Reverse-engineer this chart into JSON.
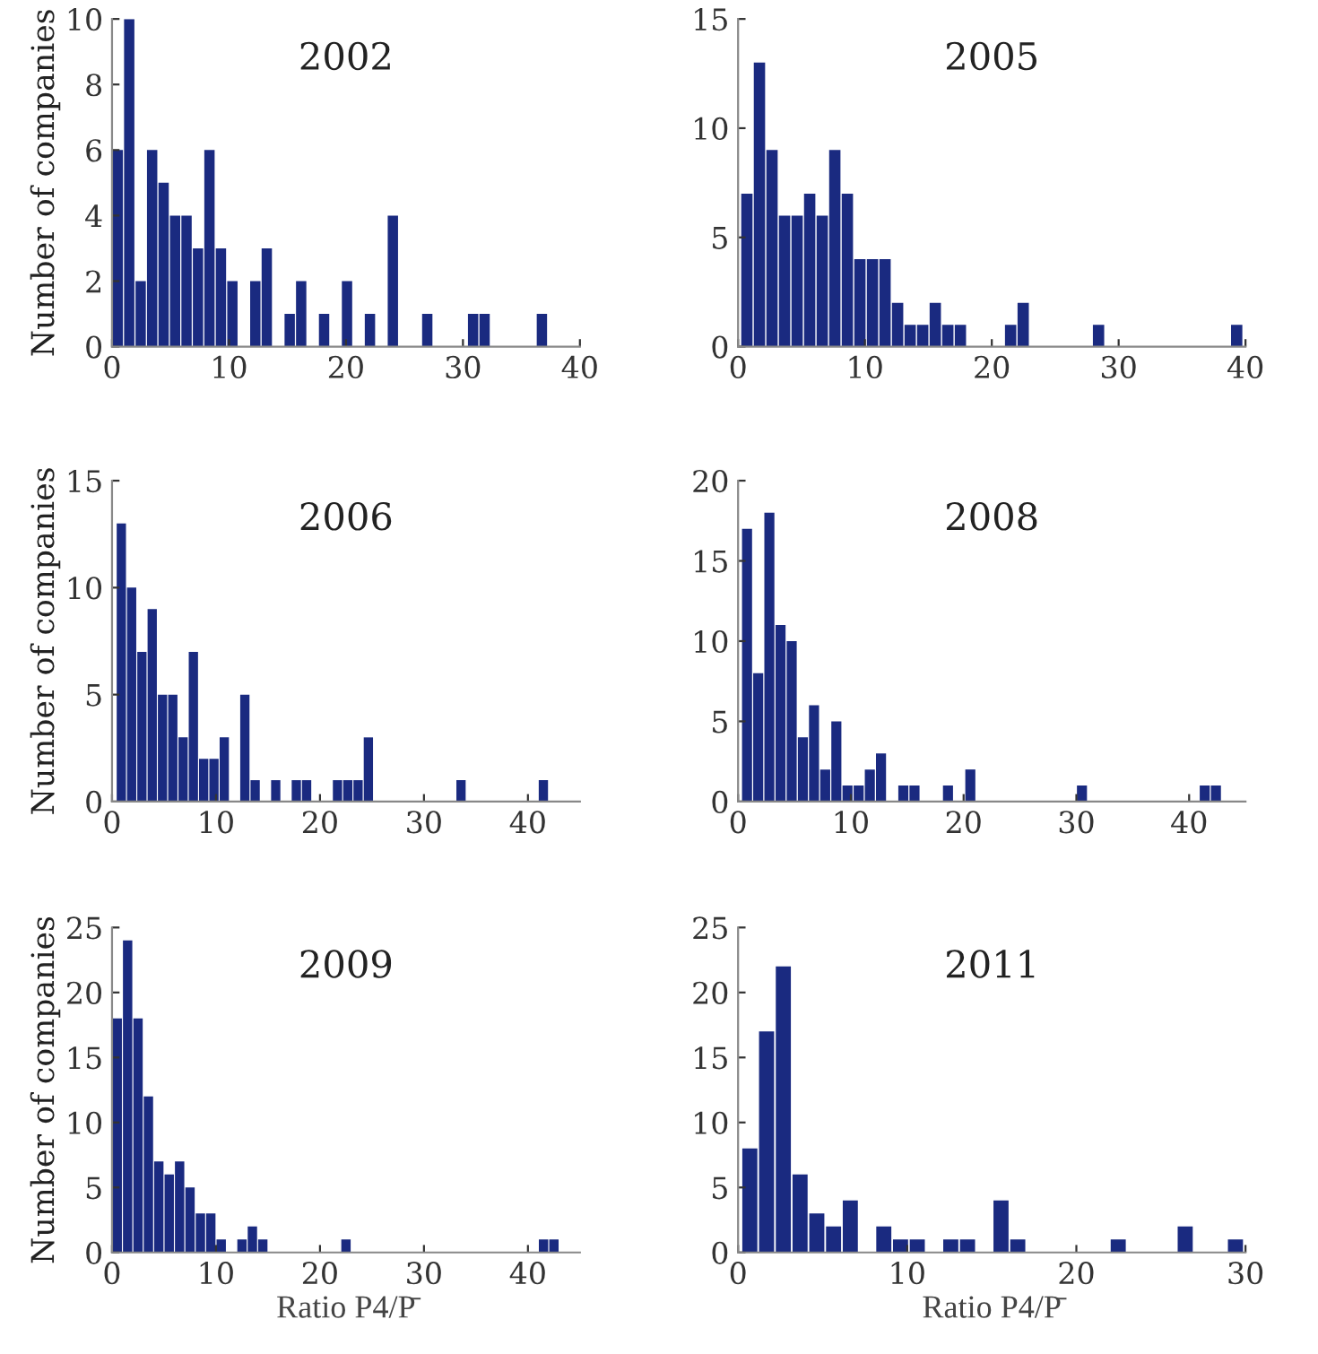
{
  "chart_data": [
    {
      "type": "histogram",
      "title": "2002",
      "ylabel": "Number of companies",
      "color": "#1a2a80",
      "xlim": [
        0,
        40
      ],
      "xticks": [
        0,
        10,
        20,
        30,
        40
      ],
      "ylim": [
        0,
        10
      ],
      "yticks": [
        0,
        2,
        4,
        6,
        8,
        10
      ],
      "grid": false,
      "bins": [
        0,
        0.98,
        1.96,
        2.94,
        3.92,
        4.9,
        5.88,
        6.86,
        7.84,
        8.82,
        9.8,
        10.78,
        11.76,
        12.74,
        13.72,
        14.7,
        15.68,
        16.66,
        17.64,
        18.62,
        19.6,
        20.58,
        21.56,
        22.54,
        23.52,
        24.5,
        25.48,
        26.46,
        27.44,
        28.42,
        29.4,
        30.38,
        31.36,
        32.34,
        33.32,
        34.3,
        35.28,
        36.26,
        37.24
      ],
      "values": [
        6,
        10,
        2,
        6,
        5,
        4,
        4,
        3,
        6,
        3,
        2,
        0,
        2,
        3,
        0,
        1,
        2,
        0,
        1,
        0,
        2,
        0,
        1,
        0,
        4,
        0,
        0,
        1,
        0,
        0,
        0,
        1,
        1,
        0,
        0,
        0,
        0,
        1
      ]
    },
    {
      "type": "histogram",
      "title": "2005",
      "color": "#1a2a80",
      "xlim": [
        0,
        40
      ],
      "xticks": [
        0,
        10,
        20,
        30,
        40
      ],
      "ylim": [
        0,
        15
      ],
      "yticks": [
        0,
        5,
        10,
        15
      ],
      "grid": false,
      "bins": [
        0.2,
        1.19,
        2.18,
        3.17,
        4.16,
        5.15,
        6.14,
        7.13,
        8.12,
        9.11,
        10.1,
        11.09,
        12.08,
        13.07,
        14.06,
        15.05,
        16.04,
        17.03,
        18.02,
        19.01,
        20,
        20.99,
        21.98,
        22.97,
        23.96,
        24.95,
        25.94,
        26.93,
        27.92,
        28.91,
        29.9,
        30.89,
        31.88,
        32.87,
        33.86,
        34.85,
        35.84,
        36.83,
        37.82,
        38.81,
        39.8
      ],
      "values": [
        7,
        13,
        9,
        6,
        6,
        7,
        6,
        9,
        7,
        4,
        4,
        4,
        2,
        1,
        1,
        2,
        1,
        1,
        0,
        0,
        0,
        1,
        2,
        0,
        0,
        0,
        0,
        0,
        1,
        0,
        0,
        0,
        0,
        0,
        0,
        0,
        0,
        0,
        0,
        1
      ]
    },
    {
      "type": "histogram",
      "title": "2006",
      "ylabel": "Number of companies",
      "color": "#1a2a80",
      "xlim": [
        0,
        45
      ],
      "xticks": [
        0,
        10,
        20,
        30,
        40
      ],
      "ylim": [
        0,
        15
      ],
      "yticks": [
        0,
        5,
        10,
        15
      ],
      "grid": false,
      "bins": [
        0.4,
        1.39,
        2.38,
        3.37,
        4.36,
        5.35,
        6.34,
        7.33,
        8.32,
        9.31,
        10.3,
        11.29,
        12.28,
        13.27,
        14.26,
        15.25,
        16.24,
        17.23,
        18.22,
        19.21,
        20.2,
        21.19,
        22.18,
        23.17,
        24.16,
        25.15,
        26.14,
        27.13,
        28.12,
        29.11,
        30.1,
        31.09,
        32.08,
        33.07,
        34.06,
        35.05,
        36.04,
        37.03,
        38.02,
        39.01,
        40,
        40.99,
        41.98
      ],
      "values": [
        13,
        10,
        7,
        9,
        5,
        5,
        3,
        7,
        2,
        2,
        3,
        0,
        5,
        1,
        0,
        1,
        0,
        1,
        1,
        0,
        0,
        1,
        1,
        1,
        3,
        0,
        0,
        0,
        0,
        0,
        0,
        0,
        0,
        1,
        0,
        0,
        0,
        0,
        0,
        0,
        0,
        1
      ]
    },
    {
      "type": "histogram",
      "title": "2008",
      "color": "#1a2a80",
      "xlim": [
        0,
        45
      ],
      "xticks": [
        0,
        10,
        20,
        30,
        40
      ],
      "ylim": [
        0,
        20
      ],
      "yticks": [
        0,
        5,
        10,
        15,
        20
      ],
      "grid": false,
      "bins": [
        0.3,
        1.29,
        2.28,
        3.27,
        4.26,
        5.25,
        6.24,
        7.23,
        8.22,
        9.21,
        10.2,
        11.19,
        12.18,
        13.17,
        14.16,
        15.15,
        16.14,
        17.13,
        18.12,
        19.11,
        20.1,
        21.09,
        22.08,
        23.07,
        24.06,
        25.05,
        26.04,
        27.03,
        28.02,
        29.01,
        30,
        30.99,
        31.98,
        32.97,
        33.96,
        34.95,
        35.94,
        36.93,
        37.92,
        38.91,
        39.9,
        40.89,
        41.88,
        42.87
      ],
      "values": [
        17,
        8,
        18,
        11,
        10,
        4,
        6,
        2,
        5,
        1,
        1,
        2,
        3,
        0,
        1,
        1,
        0,
        0,
        1,
        0,
        2,
        0,
        0,
        0,
        0,
        0,
        0,
        0,
        0,
        0,
        1,
        0,
        0,
        0,
        0,
        0,
        0,
        0,
        0,
        0,
        0,
        1,
        1
      ]
    },
    {
      "type": "histogram",
      "title": "2009",
      "ylabel": "Number of companies",
      "xlabel": "Ratio P4/P̄",
      "color": "#1a2a80",
      "xlim": [
        0,
        45
      ],
      "xticks": [
        0,
        10,
        20,
        30,
        40
      ],
      "ylim": [
        0,
        25
      ],
      "yticks": [
        0,
        5,
        10,
        15,
        20,
        25
      ],
      "grid": false,
      "bins": [
        0,
        1,
        2,
        3,
        4,
        5,
        6,
        7,
        8,
        9,
        10,
        11,
        12,
        13,
        14,
        15,
        16,
        17,
        18,
        19,
        20,
        21,
        22,
        23,
        24,
        25,
        26,
        27,
        28,
        29,
        30,
        31,
        32,
        33,
        34,
        35,
        36,
        37,
        38,
        39,
        40,
        41,
        42,
        43
      ],
      "values": [
        18,
        24,
        18,
        12,
        7,
        6,
        7,
        5,
        3,
        3,
        1,
        0,
        1,
        2,
        1,
        0,
        0,
        0,
        0,
        0,
        0,
        0,
        1,
        0,
        0,
        0,
        0,
        0,
        0,
        0,
        0,
        0,
        0,
        0,
        0,
        0,
        0,
        0,
        0,
        0,
        0,
        1,
        1
      ]
    },
    {
      "type": "histogram",
      "title": "2011",
      "xlabel": "Ratio P4/P̄",
      "color": "#1a2a80",
      "xlim": [
        0,
        30
      ],
      "xticks": [
        0,
        10,
        20,
        30
      ],
      "ylim": [
        0,
        25
      ],
      "yticks": [
        0,
        5,
        10,
        15,
        20,
        25
      ],
      "grid": false,
      "bins": [
        0.2,
        1.19,
        2.18,
        3.17,
        4.16,
        5.15,
        6.14,
        7.13,
        8.12,
        9.11,
        10.1,
        11.09,
        12.08,
        13.07,
        14.06,
        15.05,
        16.04,
        17.03,
        18.02,
        19.01,
        20,
        20.99,
        21.98,
        22.97,
        23.96,
        24.95,
        25.94,
        26.93,
        27.92,
        28.91,
        29.9
      ],
      "values": [
        8,
        17,
        22,
        6,
        3,
        2,
        4,
        0,
        2,
        1,
        1,
        0,
        1,
        1,
        0,
        4,
        1,
        0,
        0,
        0,
        0,
        0,
        1,
        0,
        0,
        0,
        2,
        0,
        0,
        1
      ]
    }
  ]
}
